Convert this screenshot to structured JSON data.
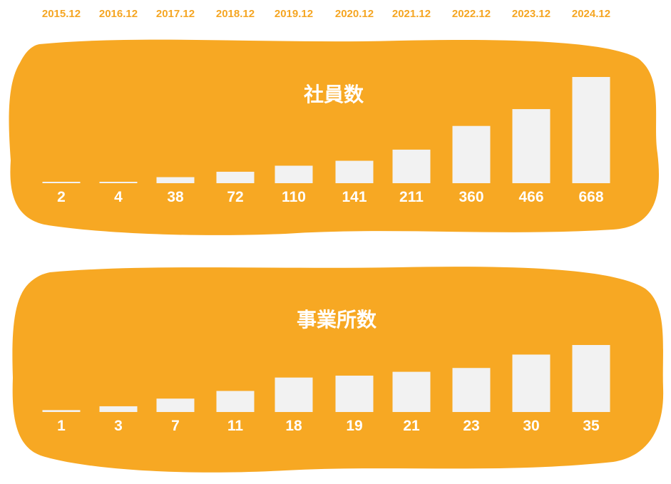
{
  "colors": {
    "panel": "#f7a823",
    "bar": "#f2f2f2",
    "year_text": "#f5a623",
    "label_text": "#ffffff"
  },
  "years": [
    "2015.12",
    "2016.12",
    "2017.12",
    "2018.12",
    "2019.12",
    "2020.12",
    "2021.12",
    "2022.12",
    "2023.12",
    "2024.12"
  ],
  "chart_data": [
    {
      "type": "bar",
      "title": "社員数",
      "categories": [
        "2015.12",
        "2016.12",
        "2017.12",
        "2018.12",
        "2019.12",
        "2020.12",
        "2021.12",
        "2022.12",
        "2023.12",
        "2024.12"
      ],
      "values": [
        2,
        4,
        38,
        72,
        110,
        141,
        211,
        360,
        466,
        668
      ],
      "value_labels": [
        "2",
        "4",
        "38",
        "72",
        "110",
        "141",
        "211",
        "360",
        "466",
        "668"
      ],
      "xlabel": "",
      "ylabel": "",
      "ylim": [
        0,
        668
      ],
      "grid": false
    },
    {
      "type": "bar",
      "title": "事業所数",
      "categories": [
        "2015.12",
        "2016.12",
        "2017.12",
        "2018.12",
        "2019.12",
        "2020.12",
        "2021.12",
        "2022.12",
        "2023.12",
        "2024.12"
      ],
      "values": [
        1,
        3,
        7,
        11,
        18,
        19,
        21,
        23,
        30,
        35
      ],
      "value_labels": [
        "1",
        "3",
        "7",
        "11",
        "18",
        "19",
        "21",
        "23",
        "30",
        "35"
      ],
      "xlabel": "",
      "ylabel": "",
      "ylim": [
        0,
        35
      ],
      "grid": false
    }
  ]
}
